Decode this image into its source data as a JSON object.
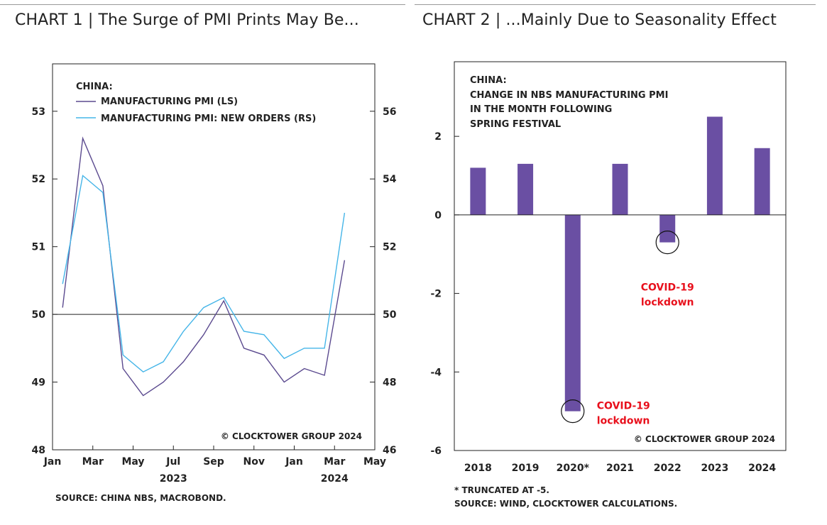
{
  "colors": {
    "pmi": "#5b4a8f",
    "new_orders": "#45b5e8",
    "bar": "#6a4fa3",
    "covid": "#e8101c"
  },
  "chart1": {
    "heading": "CHART 1 | The Surge of PMI Prints May Be...",
    "legend_title": "CHINA:",
    "copyright": "© CLOCKTOWER GROUP 2024",
    "source": "SOURCE: CHINA NBS, MACROBOND."
  },
  "chart2": {
    "heading": "CHART 2 | ...Mainly Due to Seasonality Effect",
    "title_lines": [
      "CHINA:",
      "CHANGE  IN NBS MANUFACTURING PMI",
      "IN THE MONTH FOLLOWING",
      "SPRING FESTIVAL"
    ],
    "copyright": "© CLOCKTOWER GROUP 2024",
    "footnote": "* TRUNCATED AT -5.",
    "source": "SOURCE: WIND, CLOCKTOWER CALCULATIONS."
  },
  "chart_data": [
    {
      "type": "line",
      "title": "The Surge of PMI Prints May Be...",
      "x": [
        "2023-02",
        "2023-03",
        "2023-04",
        "2023-05",
        "2023-06",
        "2023-07",
        "2023-08",
        "2023-09",
        "2023-10",
        "2023-11",
        "2023-12",
        "2024-01",
        "2024-02",
        "2024-03"
      ],
      "x_axis_range": [
        "2023-01",
        "2024-05"
      ],
      "x_tick_labels": [
        "Jan",
        "Mar",
        "May",
        "Jul",
        "Sep",
        "Nov",
        "Jan",
        "Mar",
        "May"
      ],
      "x_year_labels": [
        "2023",
        "2024"
      ],
      "series": [
        {
          "name": "MANUFACTURING PMI (LS)",
          "axis": "left",
          "values": [
            52.6,
            51.9,
            49.2,
            48.8,
            49.0,
            49.3,
            49.7,
            50.2,
            49.5,
            49.4,
            49.0,
            49.2,
            49.1,
            50.8
          ],
          "first_value": 50.1
        },
        {
          "name": "MANUFACTURING PMI: NEW ORDERS (RS)",
          "axis": "right",
          "values": [
            54.1,
            53.6,
            48.8,
            48.3,
            48.6,
            49.5,
            50.2,
            50.5,
            49.5,
            49.4,
            48.7,
            49.0,
            49.0,
            53.0
          ],
          "first_value": 50.9
        }
      ],
      "first_point_x": "2023-01-15",
      "ylim_left": [
        48,
        53.7
      ],
      "yticks_left": [
        48,
        49,
        50,
        51,
        52,
        53
      ],
      "ylim_right": [
        46,
        57.4
      ],
      "yticks_right": [
        46,
        48,
        50,
        52,
        54,
        56
      ],
      "reference_line": 50
    },
    {
      "type": "bar",
      "title": "...Mainly Due to Seasonality Effect",
      "categories": [
        "2018",
        "2019",
        "2020*",
        "2021",
        "2022",
        "2023",
        "2024"
      ],
      "values": [
        1.2,
        1.3,
        -5.0,
        1.3,
        -0.7,
        2.5,
        1.7
      ],
      "ylim": [
        -6,
        3.9
      ],
      "yticks": [
        -6,
        -4,
        -2,
        0,
        2
      ],
      "annotations": [
        {
          "category": "2020*",
          "line1": "COVID-19",
          "line2": "lockdown"
        },
        {
          "category": "2022",
          "line1": "COVID-19",
          "line2": "lockdown"
        }
      ]
    }
  ]
}
